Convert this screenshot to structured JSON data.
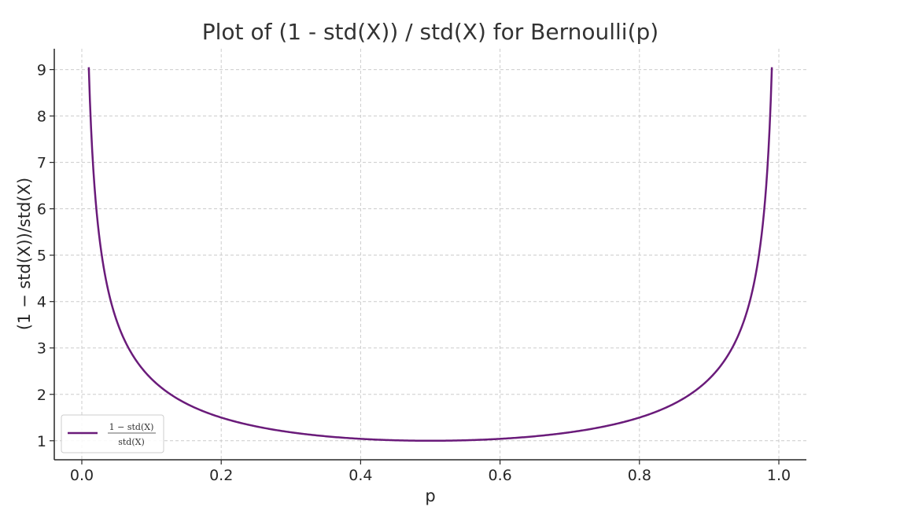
{
  "chart_data": {
    "type": "line",
    "title": "Plot of (1 - std(X)) / std(X) for Bernoulli(p)",
    "xlabel": "p",
    "ylabel": "(1 − std(X))/std(X)",
    "xlim": [
      -0.0395,
      1.0395
    ],
    "ylim": [
      0.59,
      9.45
    ],
    "xticks": [
      0.0,
      0.2,
      0.4,
      0.6,
      0.8,
      1.0
    ],
    "xtick_labels": [
      "0.0",
      "0.2",
      "0.4",
      "0.6",
      "0.8",
      "1.0"
    ],
    "yticks": [
      1,
      2,
      3,
      4,
      5,
      6,
      7,
      8,
      9
    ],
    "ytick_labels": [
      "1",
      "2",
      "3",
      "4",
      "5",
      "6",
      "7",
      "8",
      "9"
    ],
    "grid": true,
    "legend_position": "lower-left",
    "series": [
      {
        "name": "(1 − std(X))/std(X)",
        "legend_numerator": "1 − std(X)",
        "legend_denominator": "std(X)",
        "color": "#6a1b7a",
        "function": "(1 - sqrt(p*(1-p))) / sqrt(p*(1-p))",
        "x_range": [
          0.01,
          0.99
        ],
        "x": [
          0.01,
          0.02,
          0.03,
          0.05,
          0.08,
          0.1,
          0.15,
          0.2,
          0.3,
          0.4,
          0.5,
          0.6,
          0.7,
          0.8,
          0.85,
          0.9,
          0.92,
          0.95,
          0.97,
          0.98,
          0.99
        ],
        "y": [
          9.05,
          6.14,
          4.86,
          3.59,
          2.69,
          2.33,
          1.8,
          1.5,
          1.18,
          1.04,
          1.0,
          1.04,
          1.18,
          1.5,
          1.8,
          2.33,
          2.69,
          3.59,
          4.86,
          6.14,
          9.05
        ]
      }
    ]
  }
}
